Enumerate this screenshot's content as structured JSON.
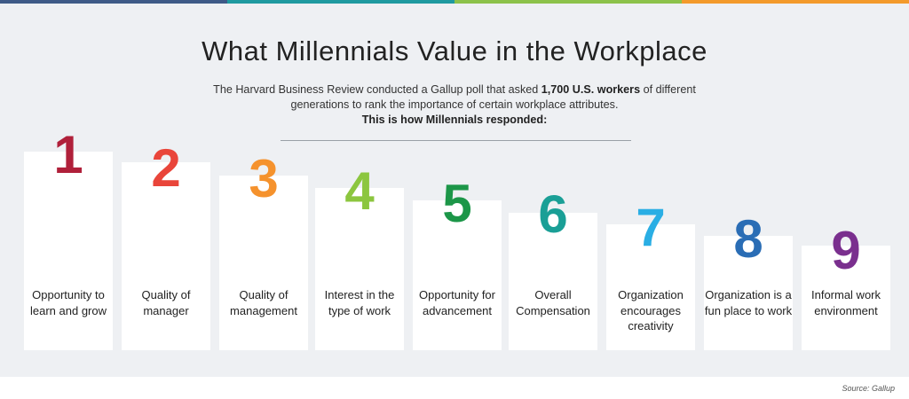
{
  "header": {
    "title": "What Millennials Value in the Workplace",
    "intro_part1": "The Harvard Business Review conducted a Gallup poll that asked ",
    "intro_bold": "1,700 U.S. workers",
    "intro_part2": " of different generations to rank the importance of certain workplace attributes.",
    "intro_line3": "This is how Millennials responded:"
  },
  "top_bar_colors": [
    "#3e5a87",
    "#1f9aa0",
    "#8cc24a",
    "#f39a2b"
  ],
  "rankings": [
    {
      "rank": "1",
      "label": "Opportunity to learn and grow",
      "color": "#b0203a"
    },
    {
      "rank": "2",
      "label": "Quality of manager",
      "color": "#e9453a"
    },
    {
      "rank": "3",
      "label": "Quality of management",
      "color": "#f5922d"
    },
    {
      "rank": "4",
      "label": "Interest in the type of work",
      "color": "#8cc63f"
    },
    {
      "rank": "5",
      "label": "Opportunity for advancement",
      "color": "#1c9648"
    },
    {
      "rank": "6",
      "label": "Overall Compensation",
      "color": "#1a9f96"
    },
    {
      "rank": "7",
      "label": "Organization encourages creativity",
      "color": "#2aaee4"
    },
    {
      "rank": "8",
      "label": "Organization is a fun place to work",
      "color": "#2a6db5"
    },
    {
      "rank": "9",
      "label": "Informal work environment",
      "color": "#7a2f8e"
    }
  ],
  "footer": {
    "source_prefix": "Source: ",
    "source_name": "Gallup"
  }
}
